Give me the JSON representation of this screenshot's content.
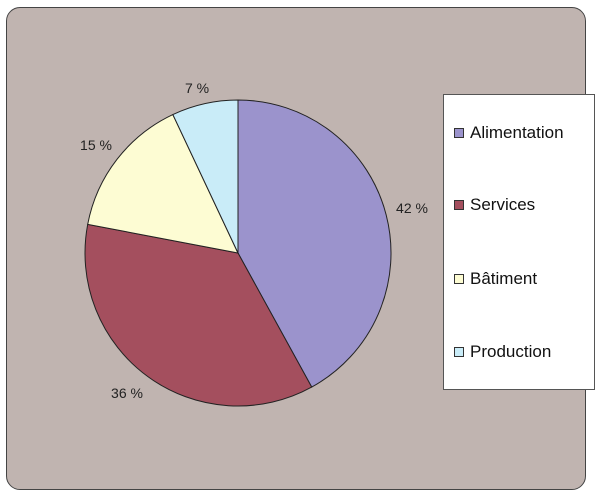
{
  "chart_data": {
    "type": "pie",
    "categories": [
      "Alimentation",
      "Services",
      "Bâtiment",
      "Production"
    ],
    "values": [
      42,
      36,
      15,
      7
    ],
    "labels": [
      "42 %",
      "36 %",
      "15 %",
      "7 %"
    ],
    "colors": [
      "#9b93cc",
      "#a44f5e",
      "#fdfcd3",
      "#c9ecf8"
    ],
    "background_color": "#c0b4b0",
    "legend_position": "right",
    "title": ""
  }
}
